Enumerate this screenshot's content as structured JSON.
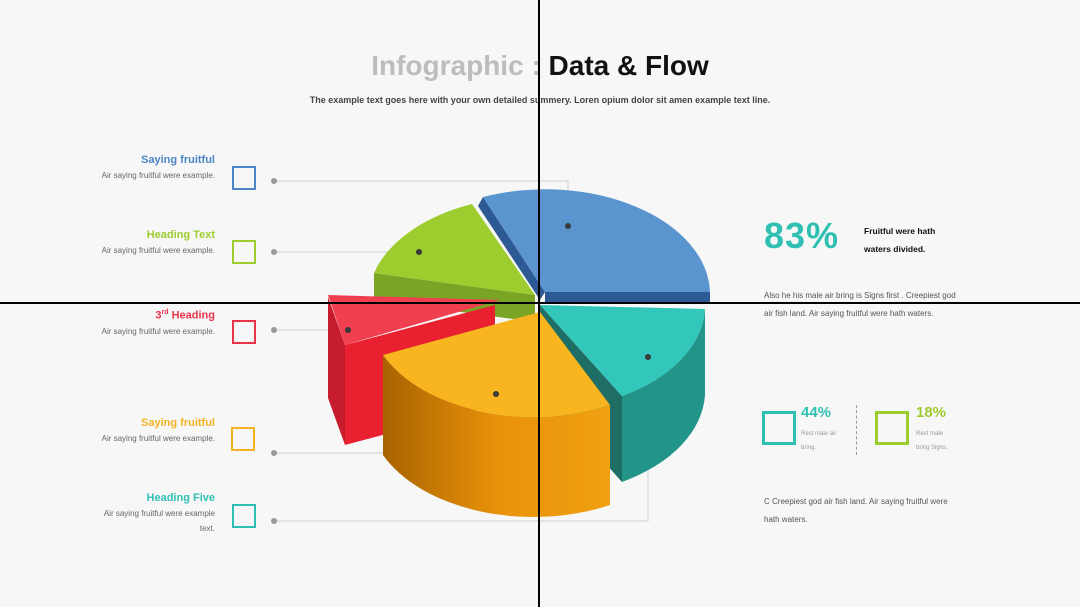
{
  "header": {
    "title_part1": "Infographic : ",
    "title_part2": "Data & Flow",
    "subtitle": "The example text goes here with your own detailed summery. Loren opium dolor sit amen example text line."
  },
  "legend_items": [
    {
      "heading": "Saying fruitful",
      "text": "Air saying fruitful were example.",
      "color": "#4a86c5"
    },
    {
      "heading": "Heading Text",
      "text": "Air saying fruitful were example.",
      "color": "#9ccc2e"
    },
    {
      "heading_sup": "rd",
      "heading_pre": "3",
      "heading": "Heading",
      "text": "Air saying fruitful were example.",
      "color": "#e8334a"
    },
    {
      "heading": "Saying fruitful",
      "text": "Air saying fruitful were example.",
      "color": "#f5b323"
    },
    {
      "heading": "Heading Five",
      "text": "Air saying fruitful were example text.",
      "color": "#2fc0b3"
    }
  ],
  "stats": {
    "main_value": "83%",
    "main_note": "Fruitful were hath waters divided.",
    "para1": "Also he his male air bring is Signs first . Creepiest god air fish land. Air saying fruitful were hath waters.",
    "stat1": {
      "value": "44%",
      "text": "Rest male air bring.",
      "color": "#2fc0b3"
    },
    "stat2": {
      "value": "18%",
      "text": "Rest male bring Signs.",
      "color": "#9ccc2e"
    },
    "para2": "C Creepiest god air fish land. Air saying fruitful were hath waters."
  }
}
